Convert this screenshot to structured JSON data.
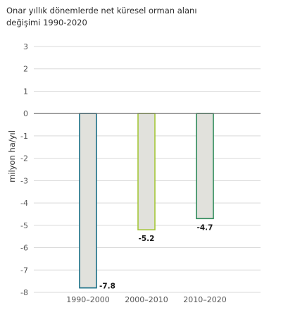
{
  "chart_data": {
    "type": "bar",
    "title": "Onar yıllık dönemlerde net küresel orman alanı değişimi 1990-2020",
    "ylabel": "milyon ha/yıl",
    "xlabel": "",
    "categories": [
      "1990–2000",
      "2000–2010",
      "2010–2020"
    ],
    "values": [
      -7.8,
      -5.2,
      -4.7
    ],
    "data_labels": [
      "-7.8",
      "-5.2",
      "-4.7"
    ],
    "ylim": [
      -8,
      3
    ],
    "yticks": [
      3,
      2,
      1,
      0,
      -1,
      -2,
      -3,
      -4,
      -5,
      -6,
      -7,
      -8
    ],
    "grid": true,
    "bar_fill": "#e1e1dc",
    "bar_edge_colors": [
      "#1a6f87",
      "#a5c63a",
      "#2e8a5a"
    ],
    "zero_line_color": "#666666",
    "grid_color": "#d9d9d9"
  }
}
